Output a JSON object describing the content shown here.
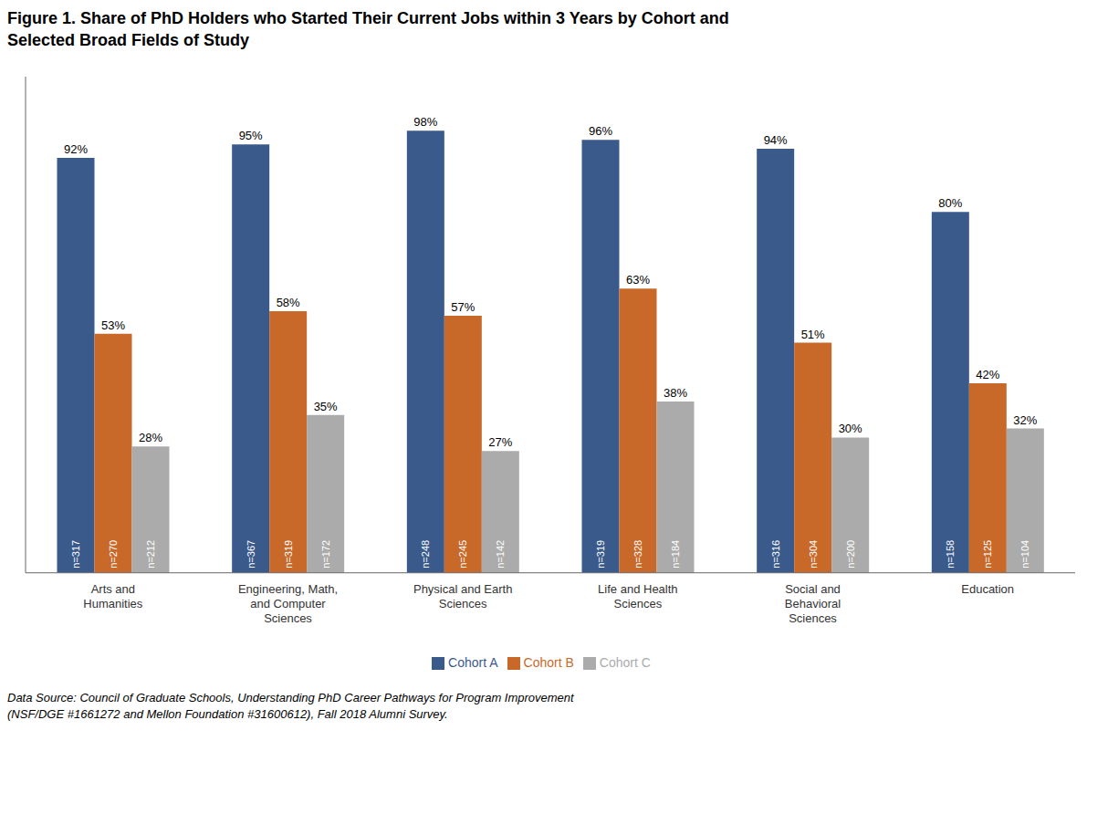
{
  "chart_data": {
    "type": "bar",
    "title": "Figure 1. Share of PhD Holders who Started Their Current Jobs within 3 Years by Cohort and\nSelected Broad Fields of Study",
    "categories": [
      "Arts and\nHumanities",
      "Engineering, Math,\nand Computer\nSciences",
      "Physical and Earth\nSciences",
      "Life and Health\nSciences",
      "Social and\nBehavioral\nSciences",
      "Education"
    ],
    "series": [
      {
        "name": "Cohort A",
        "color": "#3A5A8C",
        "values": [
          92,
          95,
          98,
          96,
          94,
          80
        ],
        "value_labels": [
          "92%",
          "95%",
          "98%",
          "96%",
          "94%",
          "80%"
        ],
        "n_labels": [
          "n=317",
          "n=367",
          "n=248",
          "n=319",
          "n=316",
          "n=158"
        ]
      },
      {
        "name": "Cohort B",
        "color": "#C8692A",
        "values": [
          53,
          58,
          57,
          63,
          51,
          42
        ],
        "value_labels": [
          "53%",
          "58%",
          "57%",
          "63%",
          "51%",
          "42%"
        ],
        "n_labels": [
          "n=270",
          "n=319",
          "n=245",
          "n=328",
          "n=304",
          "n=125"
        ]
      },
      {
        "name": "Cohort C",
        "color": "#ABABAB",
        "values": [
          28,
          35,
          27,
          38,
          30,
          32
        ],
        "value_labels": [
          "28%",
          "35%",
          "27%",
          "38%",
          "30%",
          "32%"
        ],
        "n_labels": [
          "n=212",
          "n=172",
          "n=142",
          "n=184",
          "n=200",
          "n=104"
        ]
      }
    ],
    "ylim": [
      0,
      110
    ],
    "tick_labels": "x",
    "data_labels": true,
    "legend": "bottom",
    "grid": false,
    "annotations": [
      "Data Source: Council of Graduate Schools, Understanding PhD Career Pathways for Program Improvement\n(NSF/DGE #1661272 and Mellon Foundation #31600612), Fall 2018 Alumni Survey."
    ]
  }
}
